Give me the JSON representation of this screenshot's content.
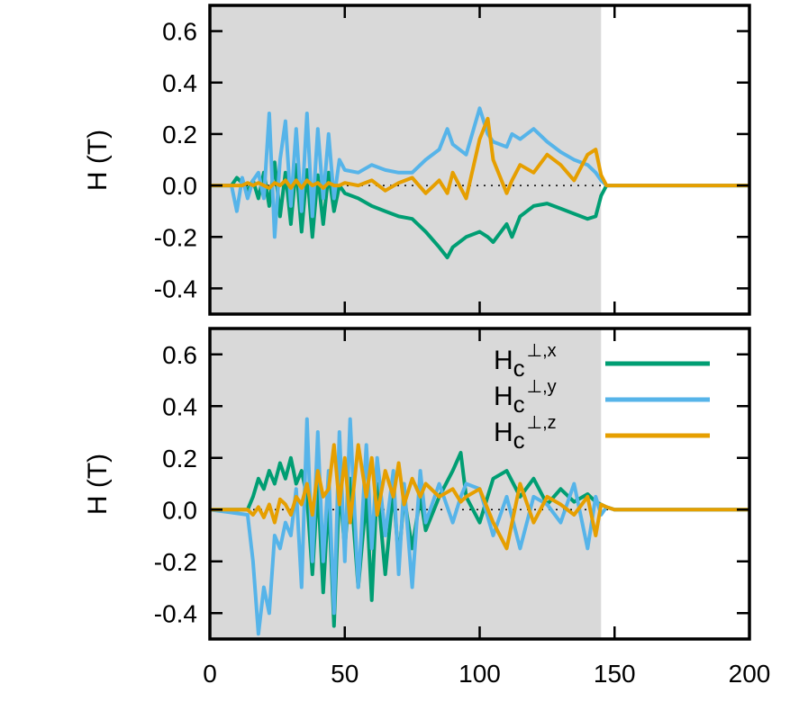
{
  "chart_data": [
    {
      "type": "line",
      "panel": "top",
      "ylabel": "H (T)",
      "ylim": [
        -0.5,
        0.7
      ],
      "xlim": [
        0,
        200
      ],
      "yticks": [
        "0.6",
        "0.4",
        "0.2",
        "0.0",
        "-0.2",
        "-0.4"
      ],
      "ytick_values": [
        0.6,
        0.4,
        0.2,
        0.0,
        -0.2,
        -0.4
      ],
      "xticks": [],
      "shaded_region": [
        0,
        145
      ],
      "shade_color": "#d9d9d9",
      "series": [
        {
          "key": "x",
          "color": "#009e73",
          "x": [
            0,
            8,
            10,
            12,
            14,
            16,
            18,
            20,
            22,
            24,
            26,
            28,
            30,
            32,
            34,
            36,
            38,
            40,
            42,
            44,
            46,
            48,
            50,
            55,
            60,
            65,
            70,
            75,
            80,
            85,
            88,
            90,
            95,
            100,
            103,
            105,
            110,
            112,
            115,
            120,
            125,
            130,
            135,
            140,
            143,
            145,
            147,
            150,
            200
          ],
          "y": [
            0,
            0,
            0.03,
            0.01,
            -0.02,
            0.02,
            -0.05,
            0.05,
            -0.08,
            0.09,
            -0.12,
            0.05,
            -0.15,
            0.08,
            -0.18,
            0.06,
            -0.2,
            0.04,
            -0.15,
            0.05,
            -0.1,
            0,
            -0.03,
            -0.05,
            -0.08,
            -0.1,
            -0.12,
            -0.13,
            -0.18,
            -0.24,
            -0.28,
            -0.24,
            -0.2,
            -0.18,
            -0.2,
            -0.22,
            -0.15,
            -0.2,
            -0.12,
            -0.08,
            -0.07,
            -0.09,
            -0.11,
            -0.13,
            -0.12,
            -0.04,
            0,
            0,
            0
          ]
        },
        {
          "key": "y",
          "color": "#56b4e9",
          "x": [
            0,
            8,
            10,
            12,
            14,
            16,
            18,
            20,
            22,
            24,
            26,
            28,
            30,
            32,
            34,
            36,
            38,
            40,
            42,
            44,
            46,
            48,
            50,
            55,
            60,
            65,
            70,
            75,
            80,
            85,
            88,
            90,
            95,
            100,
            103,
            105,
            110,
            112,
            115,
            120,
            125,
            130,
            135,
            140,
            143,
            145,
            147,
            150,
            200
          ],
          "y": [
            0,
            0,
            -0.1,
            0.03,
            -0.05,
            0.02,
            0.05,
            -0.05,
            0.28,
            -0.2,
            0.1,
            0.25,
            -0.08,
            0.22,
            -0.1,
            0.28,
            -0.12,
            0.22,
            -0.05,
            0.2,
            -0.05,
            0.1,
            0.06,
            0.05,
            0.08,
            0.06,
            0.05,
            0.05,
            0.1,
            0.14,
            0.22,
            0.16,
            0.12,
            0.3,
            0.2,
            0.17,
            0.15,
            0.2,
            0.18,
            0.22,
            0.17,
            0.13,
            0.1,
            0.08,
            0.05,
            0.02,
            0,
            0,
            0
          ]
        },
        {
          "key": "z",
          "color": "#e69f00",
          "x": [
            0,
            8,
            10,
            12,
            14,
            16,
            18,
            20,
            22,
            24,
            26,
            28,
            30,
            32,
            34,
            36,
            38,
            40,
            42,
            44,
            46,
            48,
            50,
            55,
            60,
            65,
            70,
            75,
            80,
            85,
            88,
            90,
            95,
            100,
            103,
            105,
            110,
            112,
            115,
            120,
            125,
            130,
            135,
            140,
            143,
            145,
            147,
            150,
            200
          ],
          "y": [
            0,
            0,
            0,
            0,
            0.01,
            0,
            0.01,
            0,
            -0.01,
            0.01,
            0,
            0.02,
            -0.01,
            0.02,
            -0.01,
            0.02,
            0,
            0.01,
            -0.01,
            0.01,
            0,
            0,
            0.01,
            0,
            0.02,
            -0.02,
            0.01,
            0.03,
            -0.03,
            0.02,
            -0.03,
            0.05,
            -0.05,
            0.18,
            0.26,
            0.1,
            -0.03,
            0.02,
            0.08,
            0.05,
            0.12,
            0.08,
            0.02,
            0.12,
            0.14,
            0.04,
            0,
            0,
            0
          ]
        }
      ]
    },
    {
      "type": "line",
      "panel": "bottom",
      "ylabel": "H (T)",
      "ylim": [
        -0.5,
        0.7
      ],
      "xlim": [
        0,
        200
      ],
      "yticks": [
        "0.6",
        "0.4",
        "0.2",
        "0.0",
        "-0.2",
        "-0.4"
      ],
      "ytick_values": [
        0.6,
        0.4,
        0.2,
        0.0,
        -0.2,
        -0.4
      ],
      "xticks": [
        "0",
        "50",
        "100",
        "150",
        "200"
      ],
      "xtick_values": [
        0,
        50,
        100,
        150,
        200
      ],
      "shaded_region": [
        0,
        145
      ],
      "shade_color": "#d9d9d9",
      "legend": {
        "placement": "top-right",
        "entries": [
          {
            "base": "H",
            "sub": "c",
            "sup": "⊥,x",
            "color": "#009e73"
          },
          {
            "base": "H",
            "sub": "c",
            "sup": "⊥,y",
            "color": "#56b4e9"
          },
          {
            "base": "H",
            "sub": "c",
            "sup": "⊥,z",
            "color": "#e69f00"
          }
        ]
      },
      "series": [
        {
          "key": "x",
          "color": "#009e73",
          "x": [
            0,
            14,
            16,
            18,
            20,
            22,
            24,
            26,
            28,
            30,
            32,
            34,
            36,
            38,
            40,
            42,
            44,
            46,
            48,
            50,
            52,
            55,
            58,
            60,
            62,
            65,
            68,
            70,
            72,
            75,
            78,
            80,
            85,
            90,
            93,
            95,
            100,
            105,
            110,
            115,
            120,
            125,
            130,
            135,
            140,
            143,
            145,
            147,
            150,
            200
          ],
          "y": [
            0,
            0,
            0.05,
            0.12,
            0.08,
            0.15,
            0.1,
            0.18,
            0.12,
            0.2,
            0.1,
            0.15,
            0.05,
            -0.25,
            0.1,
            -0.32,
            0.05,
            -0.45,
            0.1,
            -0.15,
            0.12,
            -0.3,
            0.05,
            -0.35,
            0.1,
            -0.25,
            0.08,
            -0.2,
            0.05,
            -0.15,
            0.05,
            -0.08,
            0.05,
            0.15,
            0.22,
            0.05,
            -0.05,
            0.12,
            0.15,
            0.05,
            0.12,
            0.02,
            0.08,
            0.03,
            0.06,
            0.03,
            0.02,
            0.01,
            0,
            0
          ]
        },
        {
          "key": "y",
          "color": "#56b4e9",
          "x": [
            0,
            14,
            16,
            18,
            20,
            22,
            24,
            26,
            28,
            30,
            32,
            34,
            36,
            38,
            40,
            42,
            44,
            46,
            48,
            50,
            52,
            55,
            58,
            60,
            62,
            65,
            68,
            70,
            72,
            75,
            78,
            80,
            85,
            90,
            93,
            95,
            100,
            105,
            110,
            115,
            120,
            125,
            130,
            135,
            140,
            143,
            145,
            147,
            150,
            200
          ],
          "y": [
            0,
            -0.02,
            -0.2,
            -0.48,
            -0.3,
            -0.4,
            -0.1,
            -0.15,
            -0.05,
            -0.1,
            0.08,
            -0.3,
            0.35,
            -0.2,
            0.3,
            -0.2,
            0.15,
            -0.4,
            0.3,
            -0.2,
            0.35,
            -0.3,
            0.25,
            -0.15,
            0.2,
            -0.1,
            0.15,
            -0.25,
            0.1,
            -0.3,
            0.15,
            -0.05,
            0.1,
            -0.05,
            0.05,
            0.1,
            0.08,
            -0.1,
            0.05,
            -0.15,
            0.05,
            0.02,
            -0.05,
            0.1,
            -0.15,
            0.05,
            -0.02,
            0.01,
            0,
            0
          ]
        },
        {
          "key": "z",
          "color": "#e69f00",
          "x": [
            0,
            14,
            16,
            18,
            20,
            22,
            24,
            26,
            28,
            30,
            32,
            34,
            36,
            38,
            40,
            42,
            44,
            46,
            48,
            50,
            52,
            55,
            58,
            60,
            62,
            65,
            68,
            70,
            72,
            75,
            78,
            80,
            85,
            90,
            93,
            95,
            100,
            105,
            110,
            115,
            120,
            125,
            130,
            135,
            140,
            143,
            145,
            147,
            150,
            200
          ],
          "y": [
            0,
            0,
            -0.02,
            0.01,
            -0.03,
            0.02,
            -0.05,
            0.04,
            0.02,
            -0.02,
            0.05,
            0.02,
            0.1,
            -0.02,
            0.15,
            0.05,
            0.08,
            0.25,
            0.02,
            0.2,
            -0.05,
            0.25,
            0.05,
            0.2,
            -0.02,
            0.15,
            0.05,
            0.18,
            0.02,
            0.12,
            0.05,
            0.1,
            0.05,
            0.08,
            0.03,
            0.05,
            0.08,
            -0.05,
            -0.15,
            0.1,
            -0.05,
            0.05,
            0.02,
            -0.02,
            0.05,
            -0.1,
            0.02,
            0.01,
            0,
            0
          ]
        }
      ]
    }
  ]
}
